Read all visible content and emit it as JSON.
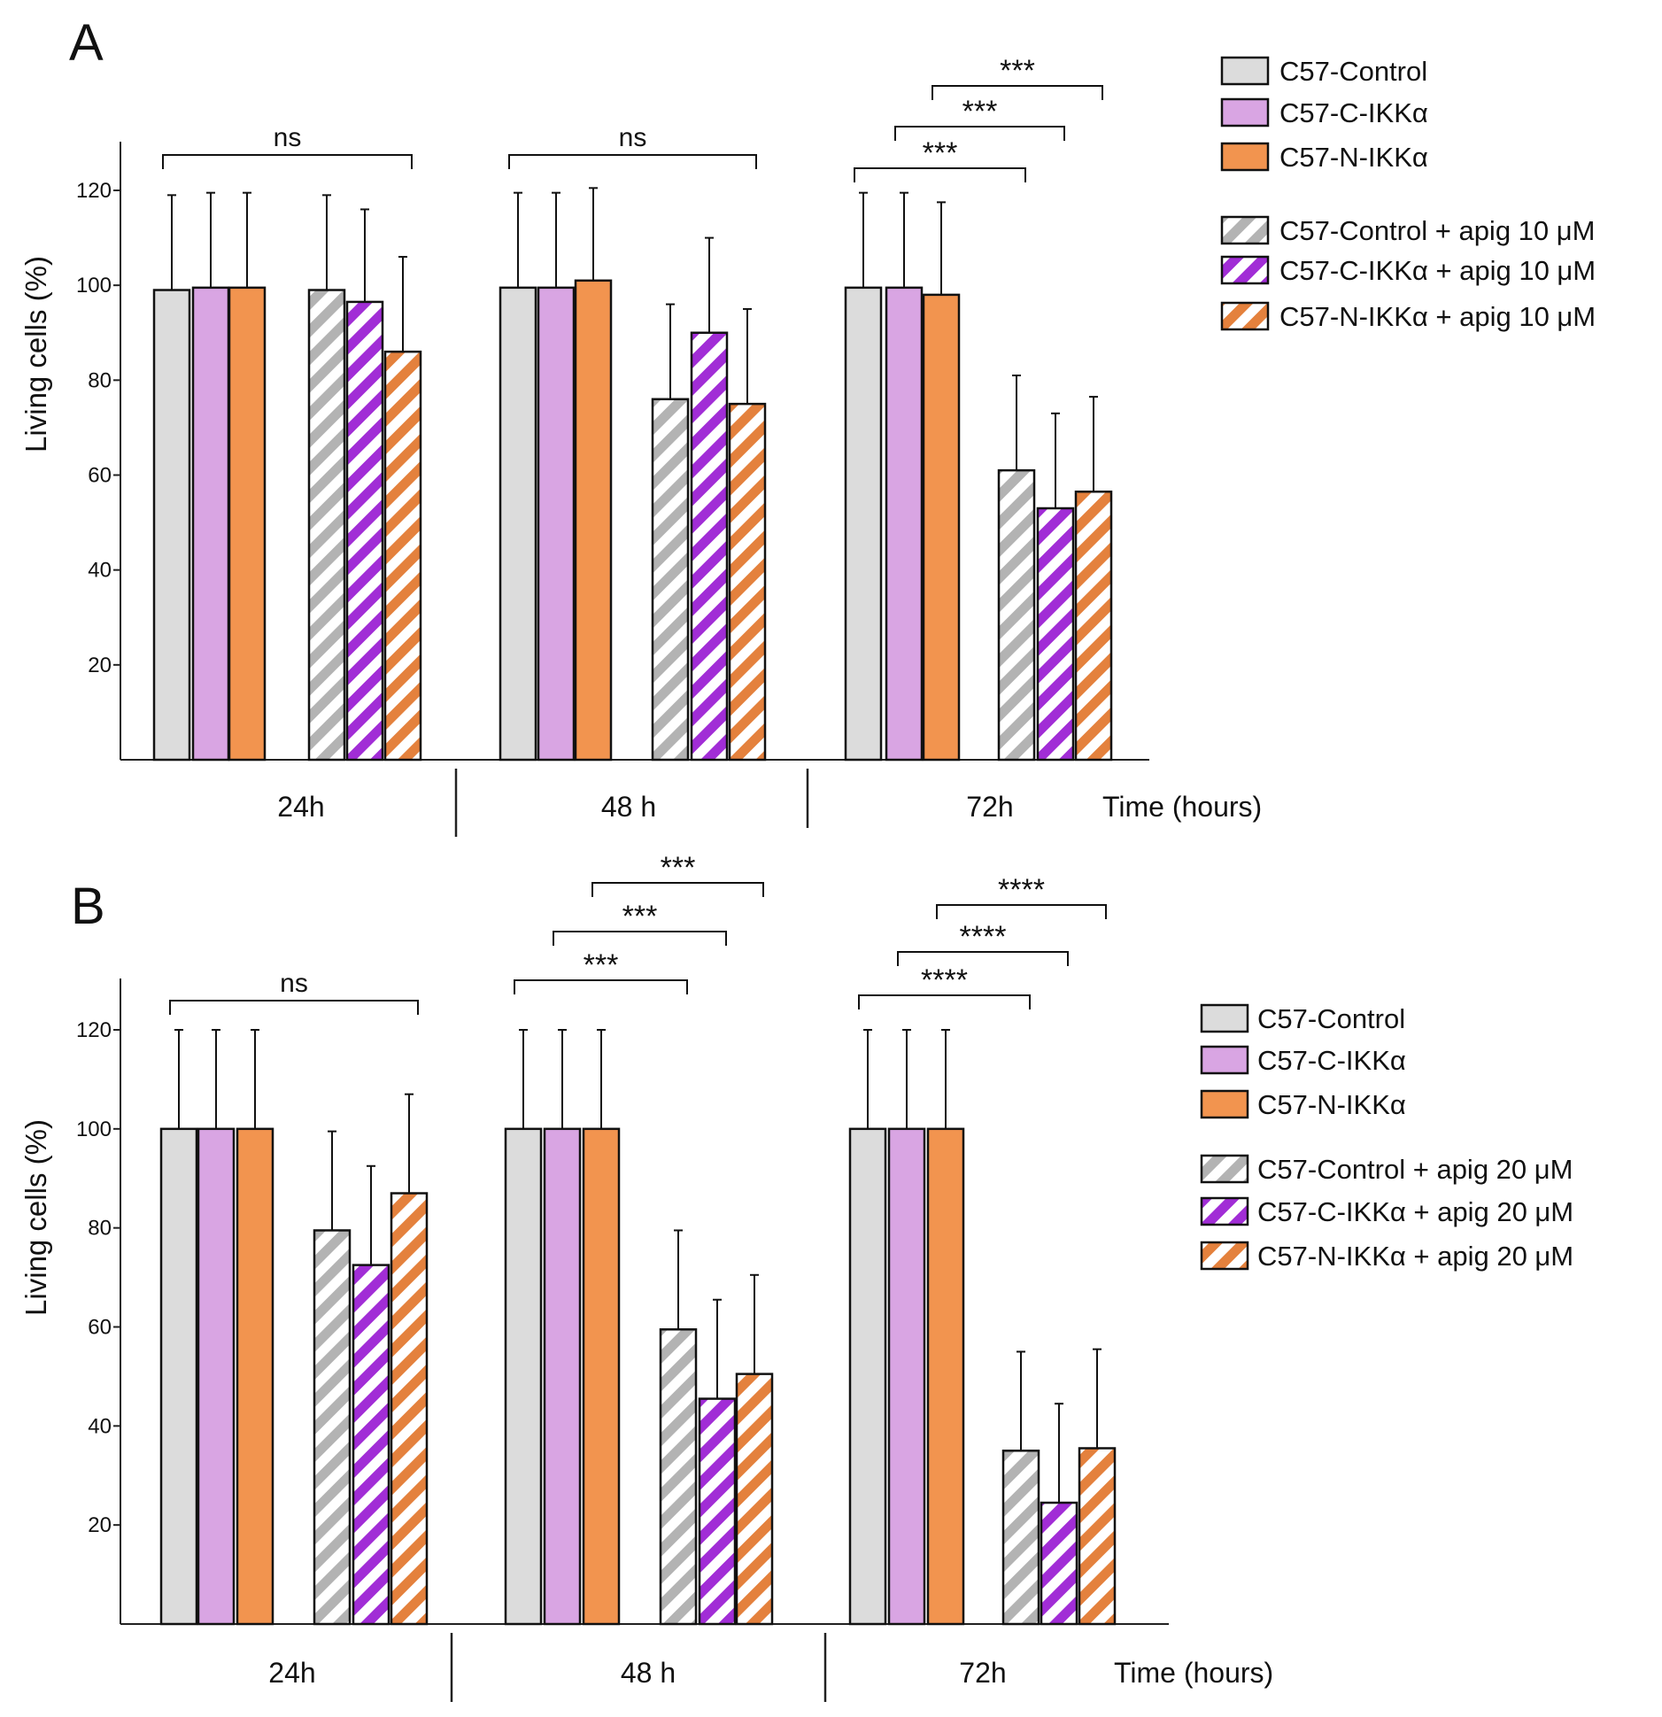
{
  "colors": {
    "control": "#dcdcdc",
    "c_ikka": "#d9a5e3",
    "n_ikka": "#f2944f",
    "control_stripe": "#b3b3b3",
    "c_ikka_stripe": "#a12dd6",
    "n_ikka_stripe": "#e4813d",
    "axis": "#222222"
  },
  "chart_data": [
    {
      "panel_label": "A",
      "type": "bar",
      "ylabel": "Living cells (%)",
      "xlabel": "Time (hours)",
      "ylim": [
        0,
        130
      ],
      "yticks": [
        20,
        40,
        60,
        80,
        100,
        120
      ],
      "ytick_labels": [
        "20",
        "40",
        "60",
        "80",
        "100",
        "120"
      ],
      "categories": [
        "24h",
        "48 h",
        "72h"
      ],
      "series": [
        {
          "name": "C57-Control",
          "color_key": "control",
          "hatched": false,
          "values": [
            99,
            99.5,
            99.5
          ],
          "errors": [
            20,
            20,
            20
          ]
        },
        {
          "name": "C57-C-IKKα",
          "color_key": "c_ikka",
          "hatched": false,
          "values": [
            99.5,
            99.5,
            99.5
          ],
          "errors": [
            20,
            20,
            20
          ]
        },
        {
          "name": "C57-N-IKKα",
          "color_key": "n_ikka",
          "hatched": false,
          "values": [
            99.5,
            101,
            98
          ],
          "errors": [
            20,
            19.5,
            19.5
          ]
        },
        {
          "name": "C57-Control + apig 10 μM",
          "color_key": "control",
          "hatched": true,
          "values": [
            99,
            76,
            61
          ],
          "errors": [
            20,
            20,
            20
          ]
        },
        {
          "name": "C57-C-IKKα + apig 10 μM",
          "color_key": "c_ikka",
          "hatched": true,
          "values": [
            96.5,
            90,
            53
          ],
          "errors": [
            19.5,
            20,
            20
          ]
        },
        {
          "name": "C57-N-IKKα + apig 10 μM",
          "color_key": "n_ikka",
          "hatched": true,
          "values": [
            86,
            75,
            56.5
          ],
          "errors": [
            20,
            20,
            20
          ]
        }
      ],
      "significance": [
        {
          "group": 0,
          "from": 0,
          "to": 5,
          "level": 0,
          "label": "ns"
        },
        {
          "group": 1,
          "from": 0,
          "to": 5,
          "level": 0,
          "label": "ns"
        },
        {
          "group": 2,
          "from": 0,
          "to": 3,
          "level": 0,
          "label": "***"
        },
        {
          "group": 2,
          "from": 1,
          "to": 4,
          "level": 1,
          "label": "***"
        },
        {
          "group": 2,
          "from": 2,
          "to": 5,
          "level": 2,
          "label": "***"
        }
      ]
    },
    {
      "panel_label": "B",
      "type": "bar",
      "ylabel": "Living cells (%)",
      "xlabel": "Time (hours)",
      "ylim": [
        0,
        130
      ],
      "yticks": [
        20,
        40,
        60,
        80,
        100,
        120
      ],
      "ytick_labels": [
        "20",
        "40",
        "60",
        "80",
        "100",
        "120"
      ],
      "categories": [
        "24h",
        "48 h",
        "72h"
      ],
      "series": [
        {
          "name": "C57-Control",
          "color_key": "control",
          "hatched": false,
          "values": [
            100,
            100,
            100
          ],
          "errors": [
            20,
            20,
            20
          ]
        },
        {
          "name": "C57-C-IKKα",
          "color_key": "c_ikka",
          "hatched": false,
          "values": [
            100,
            100,
            100
          ],
          "errors": [
            20,
            20,
            20
          ]
        },
        {
          "name": "C57-N-IKKα",
          "color_key": "n_ikka",
          "hatched": false,
          "values": [
            100,
            100,
            100
          ],
          "errors": [
            20,
            20,
            20
          ]
        },
        {
          "name": "C57-Control + apig 20 μM",
          "color_key": "control",
          "hatched": true,
          "values": [
            79.5,
            59.5,
            35
          ],
          "errors": [
            20,
            20,
            20
          ]
        },
        {
          "name": "C57-C-IKKα + apig 20 μM",
          "color_key": "c_ikka",
          "hatched": true,
          "values": [
            72.5,
            45.5,
            24.5
          ],
          "errors": [
            20,
            20,
            20
          ]
        },
        {
          "name": "C57-N-IKKα + apig 20 μM",
          "color_key": "n_ikka",
          "hatched": true,
          "values": [
            87,
            50.5,
            35.5
          ],
          "errors": [
            20,
            20,
            20
          ]
        }
      ],
      "significance": [
        {
          "group": 0,
          "from": 0,
          "to": 5,
          "level": 0,
          "label": "ns"
        },
        {
          "group": 1,
          "from": 0,
          "to": 3,
          "level": 0,
          "label": "***"
        },
        {
          "group": 1,
          "from": 1,
          "to": 4,
          "level": 1,
          "label": "***"
        },
        {
          "group": 1,
          "from": 2,
          "to": 5,
          "level": 2,
          "label": "***"
        },
        {
          "group": 2,
          "from": 0,
          "to": 3,
          "level": 0,
          "label": "****"
        },
        {
          "group": 2,
          "from": 1,
          "to": 4,
          "level": 1,
          "label": "****"
        },
        {
          "group": 2,
          "from": 2,
          "to": 5,
          "level": 2,
          "label": "****"
        }
      ]
    }
  ]
}
